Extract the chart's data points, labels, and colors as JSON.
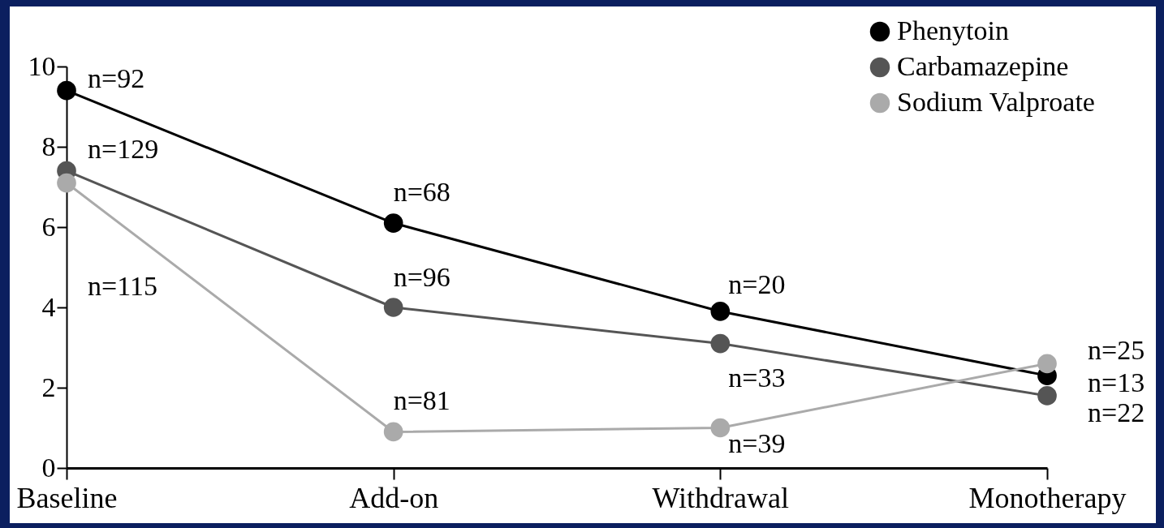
{
  "chart_data": {
    "type": "line",
    "categories": [
      "Baseline",
      "Add-on",
      "Withdrawal",
      "Monotherapy"
    ],
    "series": [
      {
        "name": "Phenytoin",
        "color": "#000000",
        "values": [
          9.4,
          6.1,
          3.9,
          2.3
        ]
      },
      {
        "name": "Carbamazepine",
        "color": "#555555",
        "values": [
          7.4,
          4.0,
          3.1,
          1.8
        ]
      },
      {
        "name": "Sodium Valproate",
        "color": "#aaaaaa",
        "values": [
          7.1,
          0.9,
          1.0,
          2.6
        ]
      }
    ],
    "ylim": [
      0,
      10
    ],
    "yticks": [
      0,
      2,
      4,
      6,
      8,
      10
    ],
    "grid": false,
    "legend": "top right",
    "marker": "circle",
    "annotations": [
      {
        "text": "n=92",
        "x": "Baseline",
        "y": 9.4
      },
      {
        "text": "n=129",
        "x": "Baseline",
        "y": 7.4
      },
      "n=115",
      {
        "text": "n=68",
        "x": "Add-on",
        "y": 6.1
      },
      {
        "text": "n=96",
        "x": "Add-on",
        "y": 4.0
      },
      {
        "text": "n=81",
        "x": "Add-on",
        "y": 0.9
      },
      {
        "text": "n=20",
        "x": "Withdrawal",
        "y": 3.9
      },
      {
        "text": "n=33",
        "x": "Withdrawal",
        "y": 3.1
      },
      {
        "text": "n=39",
        "x": "Withdrawal",
        "y": 1.0
      },
      {
        "text": "n=25",
        "x": "Monotherapy",
        "y": 2.6
      },
      {
        "text": "n=13",
        "x": "Monotherapy",
        "y": 2.3
      },
      {
        "text": "n=22",
        "x": "Monotherapy",
        "y": 1.8
      }
    ]
  }
}
